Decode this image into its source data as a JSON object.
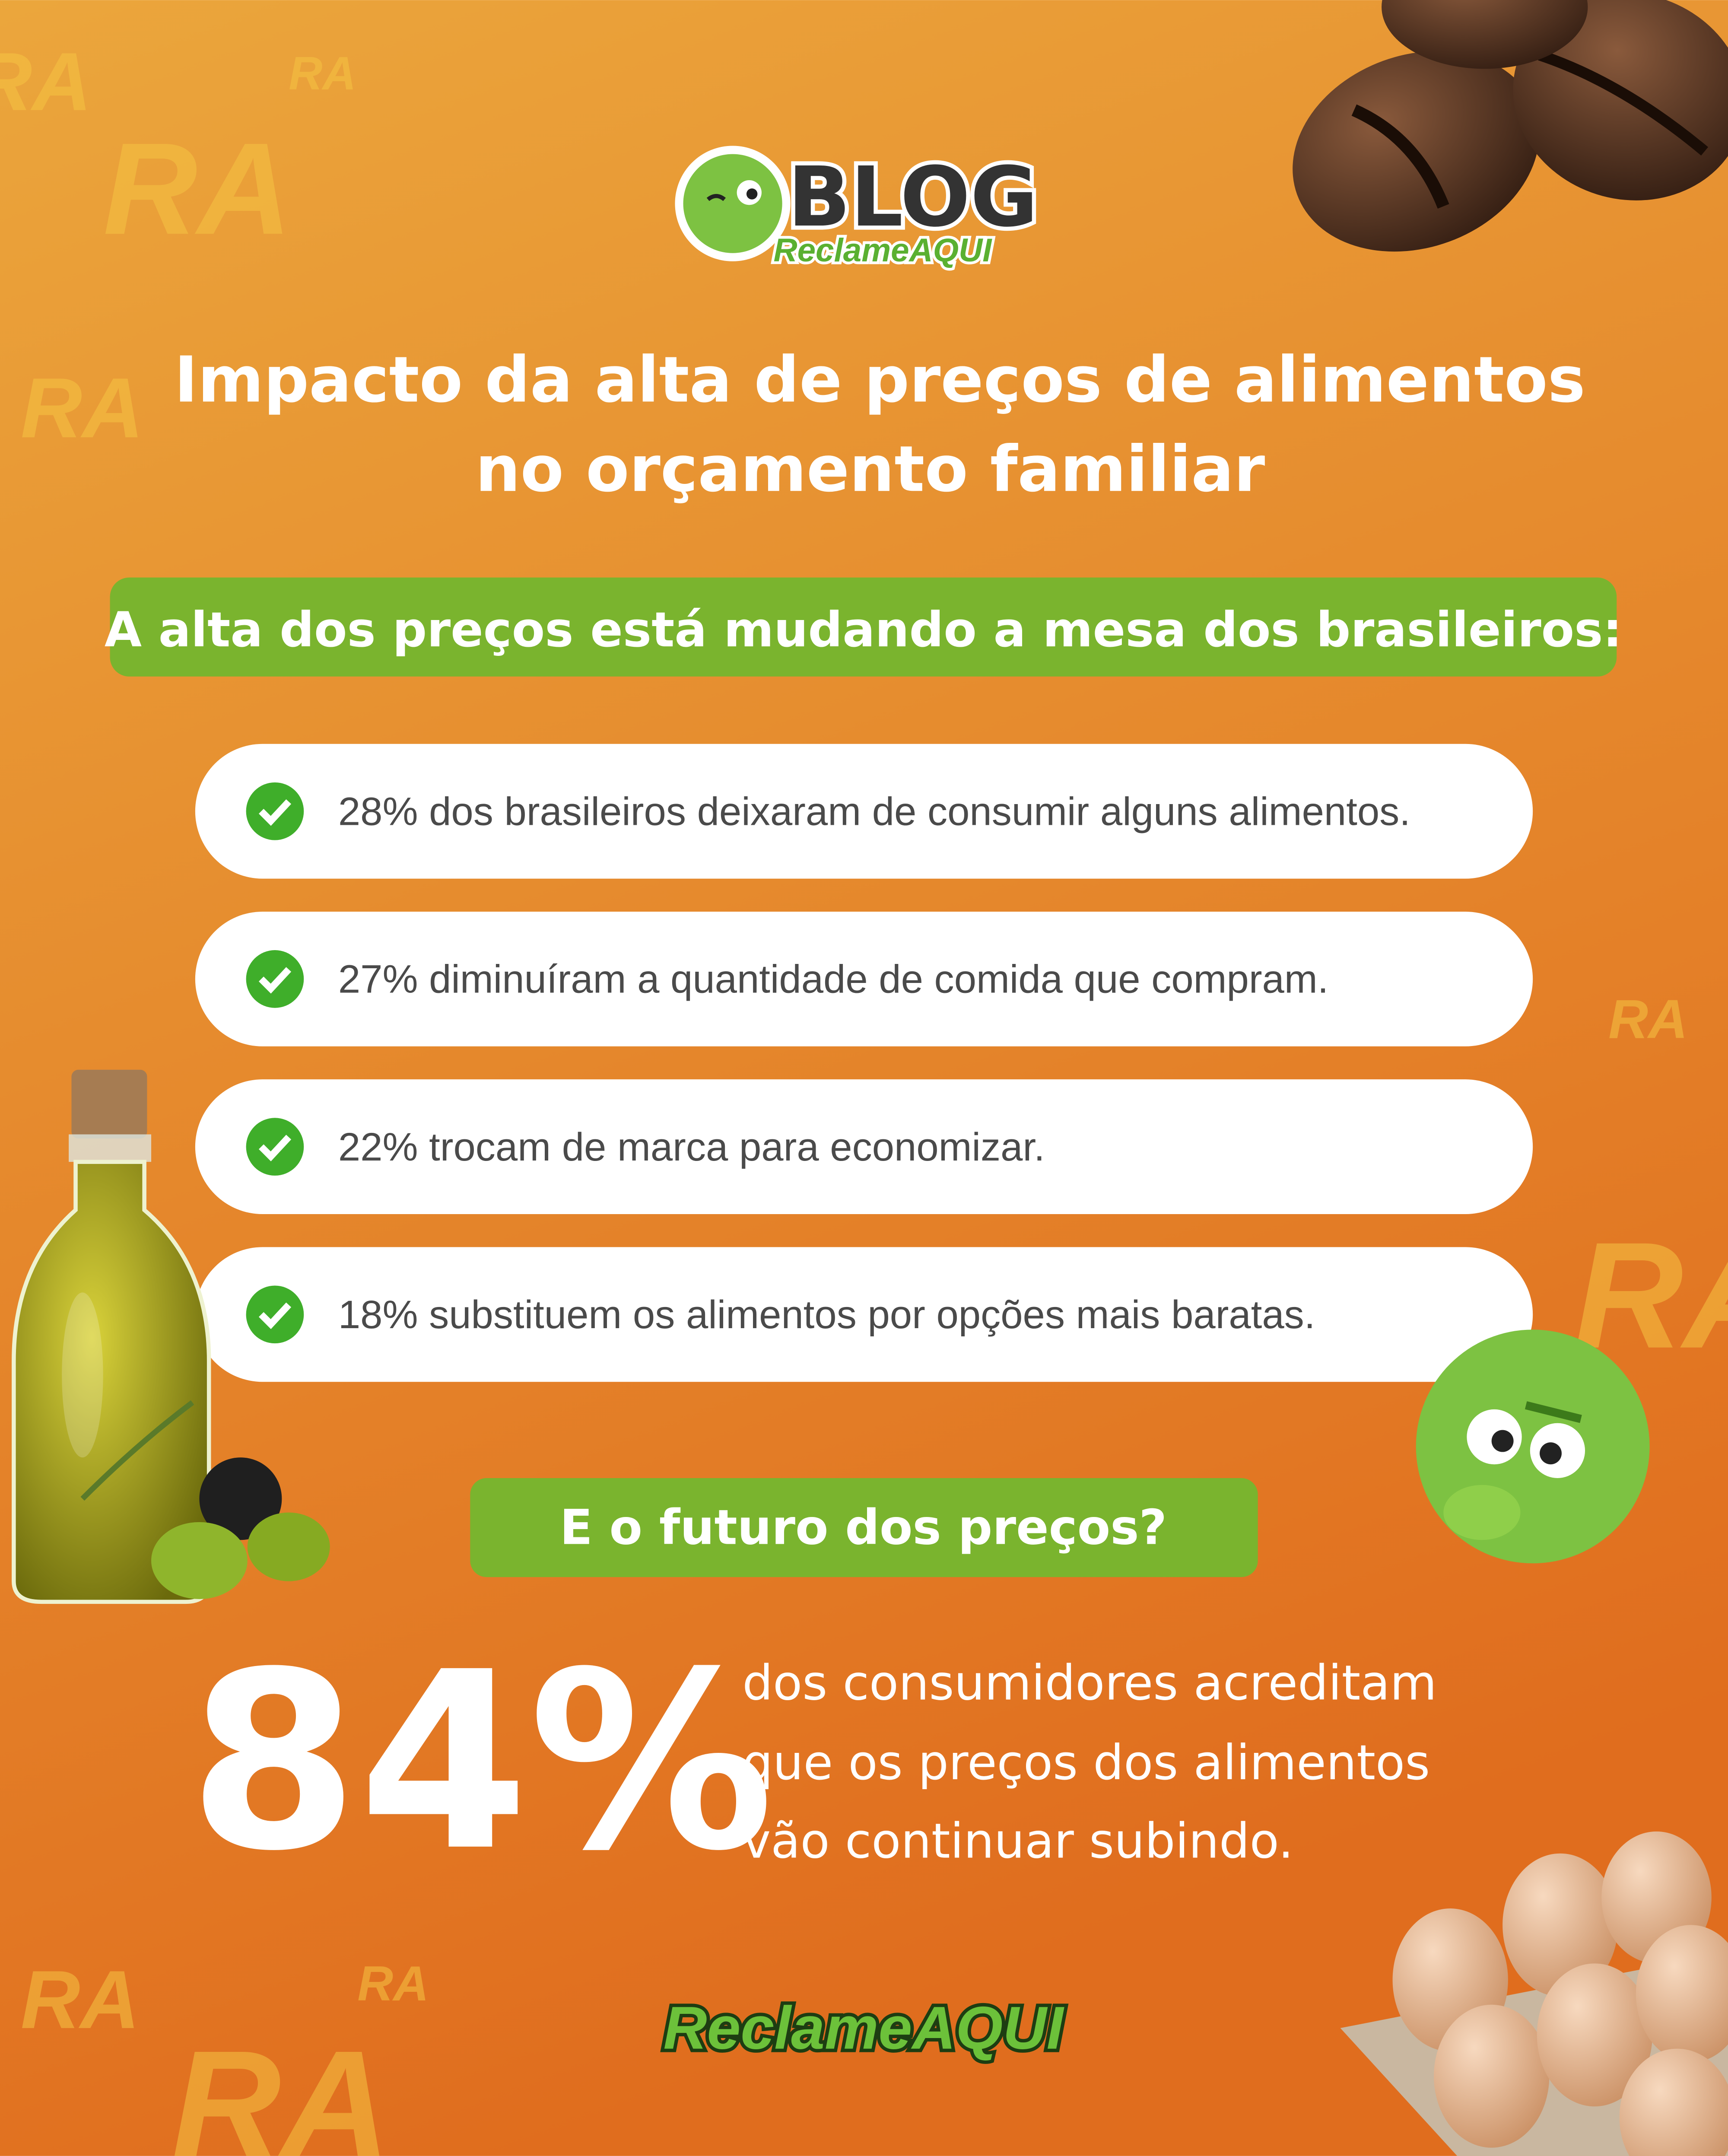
{
  "logo": {
    "blog": "BLOG",
    "brand": "ReclameAQUI"
  },
  "watermark": "RA",
  "title": [
    "Impacto da alta de preços de alimentos",
    "no orçamento familiar"
  ],
  "subtitle": "A alta dos preços está mudando a mesa dos brasileiros:",
  "items": [
    "28% dos brasileiros deixaram de consumir alguns alimentos.",
    "27% diminuíram a quantidade de comida que compram.",
    "22% trocam de marca para economizar.",
    "18% substituem os alimentos por opções mais baratas."
  ],
  "question": "E o futuro dos preços?",
  "highlight": {
    "stat": "84%",
    "text": [
      "dos consumidores acreditam",
      "que os preços dos alimentos",
      "vão continuar subindo."
    ]
  },
  "footer": "ReclameAQUI"
}
